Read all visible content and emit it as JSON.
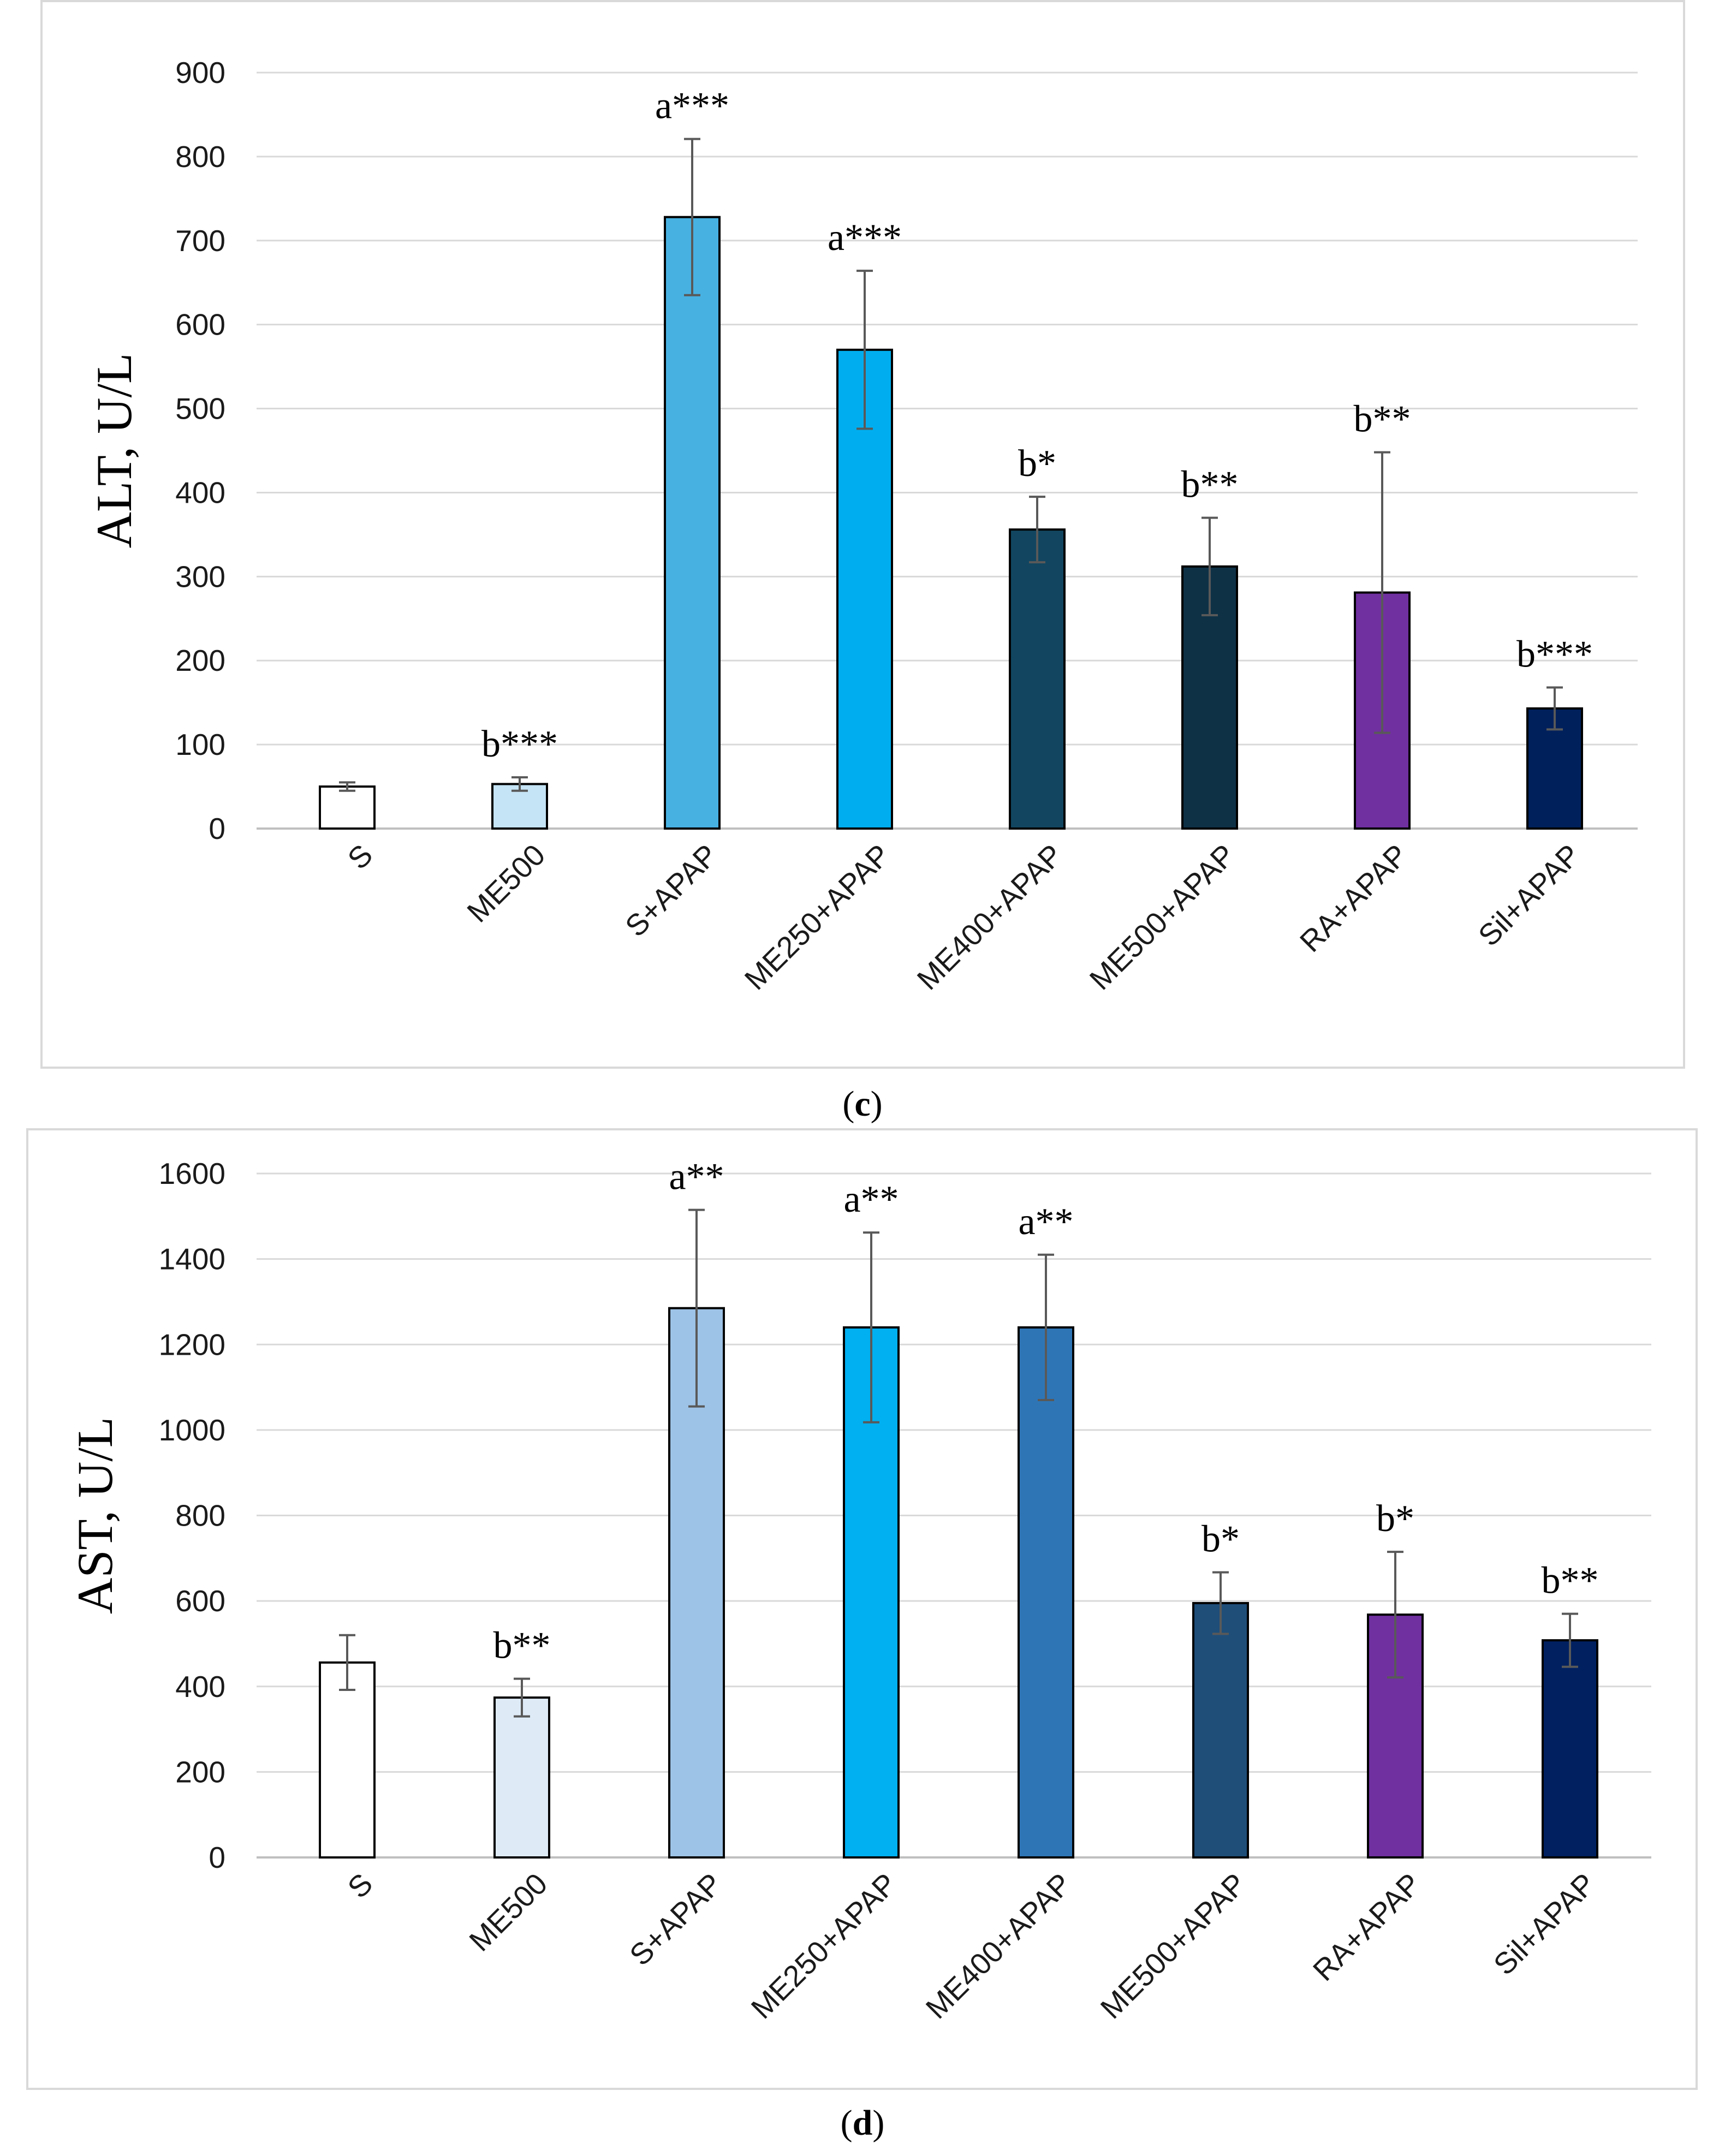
{
  "chart_data": [
    {
      "type": "bar",
      "panel": "c",
      "title": "",
      "xlabel": "",
      "ylabel": "ALT, U/L",
      "ylim": [
        0,
        900
      ],
      "yticks": [
        0,
        100,
        200,
        300,
        400,
        500,
        600,
        700,
        800,
        900
      ],
      "grid": true,
      "categories": [
        "S",
        "ME500",
        "S+APAP",
        "ME250+APAP",
        "ME400+APAP",
        "ME500+APAP",
        "RA+APAP",
        "Sil+APAP"
      ],
      "values": [
        50,
        53,
        728,
        570,
        356,
        312,
        281,
        143
      ],
      "errors": [
        5,
        8,
        93,
        94,
        39,
        58,
        167,
        25
      ],
      "annotations": [
        "",
        "b***",
        "a***",
        "a***",
        "b*",
        "b**",
        "b**",
        "b***"
      ],
      "colors": [
        "#ffffff",
        "#c5e4f5",
        "#47b1e2",
        "#00aeef",
        "#124660",
        "#0e3146",
        "#7030a0",
        "#00205b"
      ]
    },
    {
      "type": "bar",
      "panel": "d",
      "title": "",
      "xlabel": "",
      "ylabel": "AST, U/L",
      "ylim": [
        0,
        1600
      ],
      "yticks": [
        0,
        200,
        400,
        600,
        800,
        1000,
        1200,
        1400,
        1600
      ],
      "grid": true,
      "categories": [
        "S",
        "ME500",
        "S+APAP",
        "ME250+APAP",
        "ME400+APAP",
        "ME500+APAP",
        "RA+APAP",
        "Sil+APAP"
      ],
      "values": [
        456,
        374,
        1285,
        1240,
        1240,
        595,
        568,
        508
      ],
      "errors": [
        64,
        44,
        230,
        222,
        170,
        72,
        147,
        62
      ],
      "annotations": [
        "",
        "b**",
        "a**",
        "a**",
        "a**",
        "b*",
        "b*",
        "b**"
      ],
      "colors": [
        "#ffffff",
        "#deebf7",
        "#9dc3e6",
        "#00b0f0",
        "#2e75b6",
        "#1f4e79",
        "#7030a0",
        "#002060"
      ]
    }
  ],
  "captions": {
    "c": "c",
    "d": "d"
  }
}
